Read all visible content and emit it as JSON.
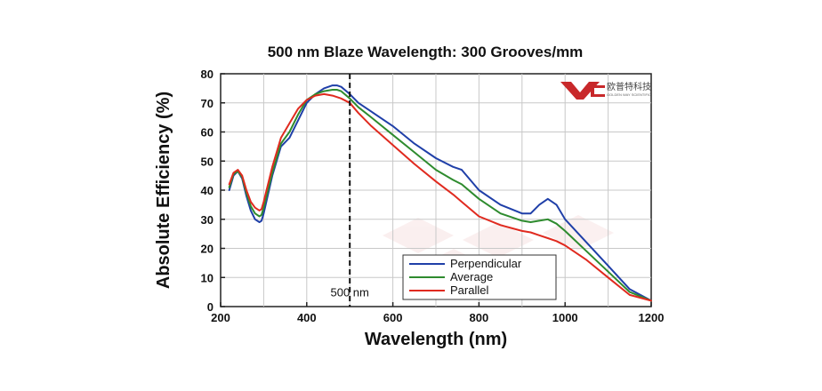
{
  "chart_data": {
    "type": "line",
    "title": "500 nm Blaze Wavelength: 300 Grooves/mm",
    "xlabel": "Wavelength (nm)",
    "ylabel": "Absolute Efficiency (%)",
    "xlim": [
      200,
      1200
    ],
    "ylim": [
      0,
      80
    ],
    "xticks": [
      200,
      400,
      600,
      800,
      1000,
      1200
    ],
    "yticks": [
      0,
      10,
      20,
      30,
      40,
      50,
      60,
      70,
      80
    ],
    "grid": true,
    "legend_position": "bottom-center",
    "annotation": {
      "x": 500,
      "label": "500 nm"
    },
    "series": [
      {
        "name": "Perpendicular",
        "color": "#1f3fa8",
        "x": [
          220,
          230,
          240,
          250,
          260,
          270,
          280,
          290,
          295,
          300,
          320,
          340,
          360,
          380,
          400,
          420,
          440,
          460,
          470,
          480,
          500,
          520,
          550,
          600,
          650,
          700,
          740,
          760,
          800,
          850,
          900,
          920,
          940,
          960,
          980,
          1000,
          1050,
          1100,
          1150,
          1200
        ],
        "y": [
          40,
          45,
          46.5,
          44,
          38,
          33,
          30,
          29,
          29.5,
          32,
          45,
          55,
          58,
          64,
          70,
          73,
          75,
          76,
          76,
          75.5,
          73,
          70,
          67,
          62,
          56,
          51,
          48,
          47,
          40,
          35,
          32,
          32,
          35,
          37,
          35,
          30,
          22,
          14,
          6,
          2
        ]
      },
      {
        "name": "Average",
        "color": "#2e8b2e",
        "x": [
          220,
          230,
          240,
          250,
          260,
          270,
          280,
          290,
          295,
          300,
          320,
          340,
          360,
          380,
          400,
          420,
          440,
          460,
          470,
          480,
          500,
          520,
          550,
          600,
          650,
          700,
          740,
          760,
          800,
          850,
          900,
          920,
          940,
          960,
          980,
          1000,
          1050,
          1100,
          1150,
          1200
        ],
        "y": [
          41,
          45.5,
          46.5,
          44.5,
          39,
          34.5,
          32,
          31,
          31.5,
          34,
          46,
          56,
          60,
          66,
          71,
          73,
          74,
          74.5,
          74.5,
          74,
          71.5,
          68.5,
          65,
          59,
          53,
          47,
          43.5,
          42,
          37,
          32,
          29.5,
          29,
          29.5,
          30,
          28.5,
          26,
          19,
          12,
          5,
          2
        ]
      },
      {
        "name": "Parallel",
        "color": "#e02a1f",
        "x": [
          220,
          230,
          240,
          250,
          260,
          270,
          280,
          290,
          295,
          300,
          320,
          340,
          360,
          380,
          400,
          420,
          440,
          460,
          470,
          480,
          500,
          520,
          550,
          600,
          650,
          700,
          740,
          760,
          800,
          850,
          900,
          920,
          940,
          960,
          980,
          1000,
          1050,
          1100,
          1150,
          1200
        ],
        "y": [
          42,
          46,
          47,
          45,
          40,
          36,
          34,
          33,
          33.5,
          36,
          48,
          58,
          63,
          68,
          71,
          72.5,
          73,
          72.5,
          72,
          71.5,
          70,
          66.5,
          62,
          55.5,
          49,
          43,
          38.5,
          36,
          31,
          28,
          26,
          25.5,
          24.5,
          23.5,
          22.5,
          21,
          16,
          10,
          4,
          2
        ]
      }
    ]
  },
  "logo": {
    "name_cn": "欧普特科技",
    "name_en": "GOLDEN WAY SCIENTIFIC",
    "color": "#c8282a"
  }
}
